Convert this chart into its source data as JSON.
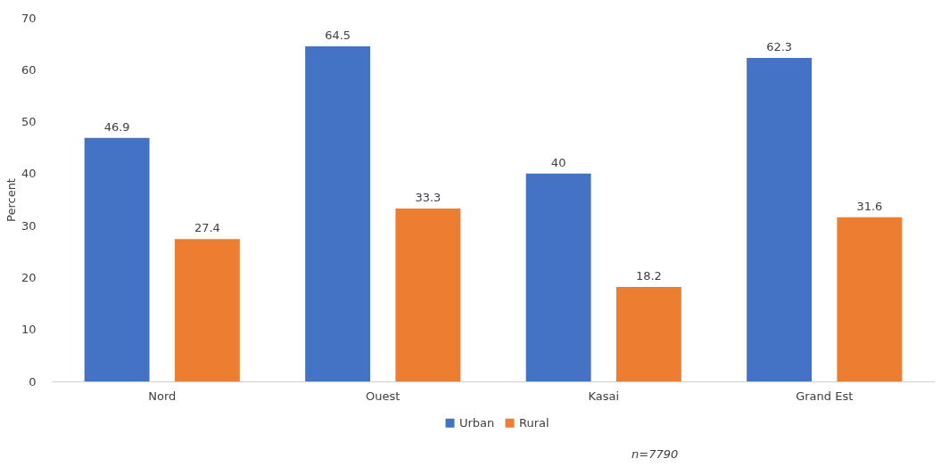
{
  "chart_data": {
    "type": "bar",
    "ylabel": "Percent",
    "categories": [
      "Nord",
      "Ouest",
      "Kasai",
      "Grand Est"
    ],
    "series": [
      {
        "name": "Urban",
        "color": "#4472c4",
        "values": [
          46.9,
          64.5,
          40,
          62.3
        ]
      },
      {
        "name": "Rural",
        "color": "#ed7d31",
        "values": [
          27.4,
          33.3,
          18.2,
          31.6
        ]
      }
    ],
    "ylim": [
      0,
      70
    ],
    "yticks": [
      0,
      10,
      20,
      30,
      40,
      50,
      60,
      70
    ],
    "grid": false,
    "legend": "bottom",
    "data_labels": true,
    "annotations": [
      "n=7790"
    ]
  }
}
